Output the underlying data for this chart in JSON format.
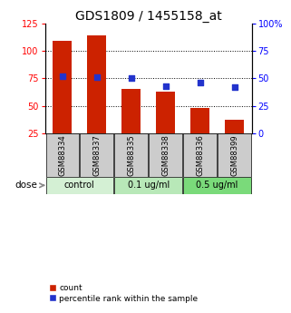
{
  "title": "GDS1809 / 1455158_at",
  "samples": [
    "GSM88334",
    "GSM88337",
    "GSM88335",
    "GSM88338",
    "GSM88336",
    "GSM88399"
  ],
  "bar_values": [
    109,
    114,
    65,
    63,
    48,
    37
  ],
  "dot_values": [
    52,
    51,
    50,
    43,
    46,
    42
  ],
  "bar_color": "#cc2200",
  "dot_color": "#2233cc",
  "left_ylim": [
    25,
    125
  ],
  "left_yticks": [
    25,
    50,
    75,
    100,
    125
  ],
  "right_ylim": [
    0,
    100
  ],
  "right_yticks": [
    0,
    25,
    50,
    75,
    100
  ],
  "right_yticklabels": [
    "0",
    "25",
    "50",
    "75",
    "100%"
  ],
  "hlines": [
    50,
    75,
    100
  ],
  "groups": [
    {
      "label": "control",
      "indices": [
        0,
        1
      ],
      "color": "#d4f0d4"
    },
    {
      "label": "0.1 ug/ml",
      "indices": [
        2,
        3
      ],
      "color": "#b8e8b8"
    },
    {
      "label": "0.5 ug/ml",
      "indices": [
        4,
        5
      ],
      "color": "#7ada7a"
    }
  ],
  "dose_label": "dose",
  "legend_count": "count",
  "legend_pct": "percentile rank within the sample",
  "title_fontsize": 10,
  "tick_fontsize": 7,
  "bar_width": 0.55,
  "sample_box_color": "#cccccc"
}
